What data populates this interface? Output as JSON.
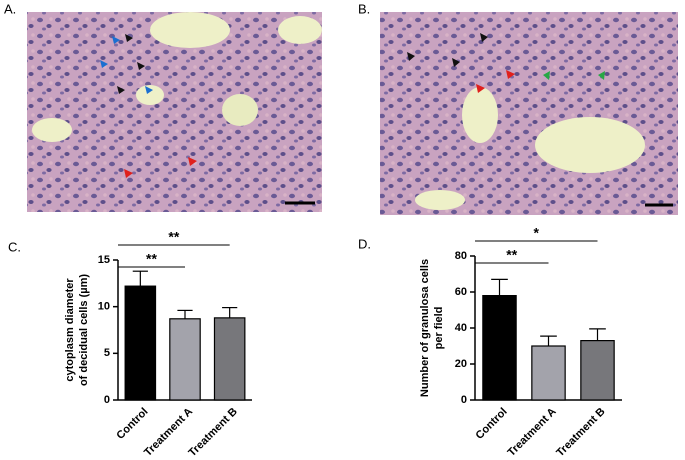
{
  "panels": [
    {
      "label": "A."
    },
    {
      "label": "B."
    }
  ],
  "chart_data": [
    {
      "type": "bar",
      "panel_label": "C.",
      "ylabel": [
        "cytoplasm diameter",
        "of decidual cells (µm)"
      ],
      "categories": [
        "Control",
        "Treatment A",
        "Treatment B"
      ],
      "values": [
        12.2,
        8.7,
        8.8
      ],
      "errors": [
        1.6,
        0.9,
        1.1
      ],
      "colors": [
        "#000000",
        "#a3a3ab",
        "#77777b"
      ],
      "ylim": [
        0,
        15
      ],
      "yticks": [
        0,
        5,
        10,
        15
      ],
      "significance": [
        {
          "label": "**",
          "from": "Control",
          "to": "Treatment B"
        },
        {
          "label": "**",
          "from": "Control",
          "to": "Treatment A"
        }
      ]
    },
    {
      "type": "bar",
      "panel_label": "D.",
      "ylabel": [
        "Number of granulosa cells",
        "per field"
      ],
      "categories": [
        "Control",
        "Treatment A",
        "Treatment B"
      ],
      "values": [
        58,
        30,
        33
      ],
      "errors": [
        9,
        5.5,
        6.5
      ],
      "colors": [
        "#000000",
        "#a3a3ab",
        "#77777b"
      ],
      "ylim": [
        0,
        80
      ],
      "yticks": [
        0,
        20,
        40,
        60,
        80
      ],
      "significance": [
        {
          "label": "*",
          "from": "Control",
          "to": "Treatment B"
        },
        {
          "label": "**",
          "from": "Control",
          "to": "Treatment A"
        }
      ]
    }
  ]
}
